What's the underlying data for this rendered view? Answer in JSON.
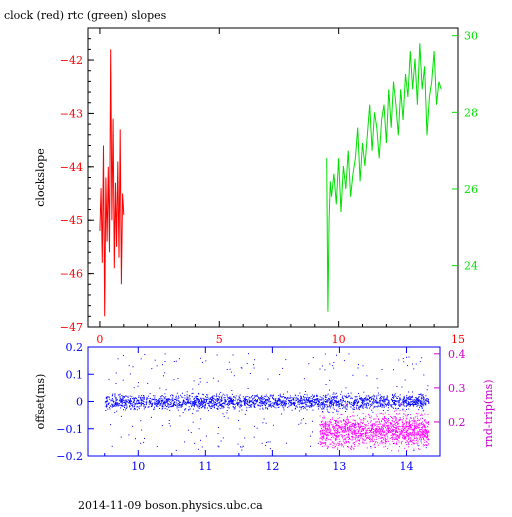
{
  "page": {
    "title": "clock (red) rtc (green) slopes",
    "footer": "2014-11-09  boson.physics.ubc.ca"
  },
  "colors": {
    "axis": "#000000",
    "red": "#ff0000",
    "green": "#00e000",
    "blue": "#0000ff",
    "magenta": "#ff00ff",
    "blue_axis": "#0000ff",
    "magenta_axis": "#cc00cc"
  },
  "chart_data": [
    {
      "id": "top",
      "type": "line",
      "title": "clock (red) rtc (green) slopes",
      "xlim": [
        -0.5,
        15
      ],
      "x_ticks": [
        0,
        5,
        10,
        15
      ],
      "ylabel": "clockslope",
      "ylim": [
        -47,
        -41.4
      ],
      "y_ticks": [
        -47,
        -46,
        -45,
        -44,
        -43,
        -42
      ],
      "y2lim": [
        22.4,
        30.2
      ],
      "y2_ticks": [
        24,
        26,
        28,
        30
      ],
      "grid": false,
      "series": [
        {
          "name": "clock",
          "color": "red",
          "axis": "left",
          "x": [
            0.0,
            0.05,
            0.1,
            0.15,
            0.2,
            0.25,
            0.3,
            0.35,
            0.4,
            0.45,
            0.5,
            0.55,
            0.6,
            0.65,
            0.7,
            0.75,
            0.8,
            0.85,
            0.9,
            0.95,
            1.0
          ],
          "y": [
            -45.2,
            -44.4,
            -45.8,
            -43.6,
            -46.8,
            -44.2,
            -45.4,
            -44.0,
            -45.6,
            -41.8,
            -45.0,
            -43.1,
            -45.9,
            -44.3,
            -45.5,
            -43.9,
            -45.7,
            -43.3,
            -46.2,
            -44.5,
            -44.9
          ]
        },
        {
          "name": "rtc",
          "color": "green",
          "axis": "right",
          "x": [
            9.5,
            9.55,
            9.6,
            9.65,
            9.7,
            9.8,
            9.9,
            10.0,
            10.1,
            10.2,
            10.3,
            10.4,
            10.5,
            10.6,
            10.7,
            10.8,
            10.9,
            11.0,
            11.1,
            11.2,
            11.3,
            11.4,
            11.5,
            11.6,
            11.7,
            11.8,
            11.9,
            12.0,
            12.1,
            12.2,
            12.3,
            12.4,
            12.5,
            12.6,
            12.7,
            12.8,
            12.9,
            13.0,
            13.1,
            13.2,
            13.3,
            13.4,
            13.5,
            13.6,
            13.7,
            13.8,
            13.9,
            14.0,
            14.1,
            14.2,
            14.3
          ],
          "y": [
            26.8,
            22.8,
            25.2,
            26.2,
            25.8,
            26.4,
            25.6,
            26.8,
            25.4,
            26.6,
            26.0,
            27.0,
            25.8,
            26.4,
            26.8,
            27.6,
            26.2,
            27.2,
            26.6,
            27.4,
            28.2,
            27.0,
            28.0,
            27.6,
            26.8,
            27.8,
            28.2,
            27.2,
            28.6,
            27.6,
            28.8,
            28.2,
            27.4,
            28.6,
            27.8,
            29.0,
            28.4,
            29.6,
            28.6,
            29.4,
            28.2,
            29.8,
            28.6,
            29.2,
            27.4,
            28.4,
            28.8,
            29.6,
            28.2,
            28.8,
            28.6
          ]
        }
      ]
    },
    {
      "id": "bottom",
      "type": "scatter",
      "xlim": [
        9.25,
        14.5
      ],
      "x_ticks": [
        10,
        11,
        12,
        13,
        14
      ],
      "ylabel": "offset(ms)",
      "ylim": [
        -0.2,
        0.2
      ],
      "y_ticks": [
        -0.2,
        -0.1,
        0,
        0.1,
        0.2
      ],
      "y2label": "rnd-trip(ms)",
      "y2lim": [
        0.1,
        0.42
      ],
      "y2_ticks": [
        0.2,
        0.3,
        0.4
      ],
      "grid": false,
      "series": [
        {
          "name": "offset",
          "color": "blue",
          "axis": "left",
          "x_range": [
            9.5,
            14.33
          ],
          "band_center": 0.0,
          "band_halfwidth": 0.02,
          "scatter_range": [
            -0.18,
            0.18
          ]
        },
        {
          "name": "rnd-trip",
          "color": "magenta",
          "axis": "right",
          "x_range": [
            12.7,
            14.33
          ],
          "band_center": 0.175,
          "band_halfwidth": 0.035,
          "scatter_range": [
            0.12,
            0.26
          ]
        }
      ]
    }
  ]
}
